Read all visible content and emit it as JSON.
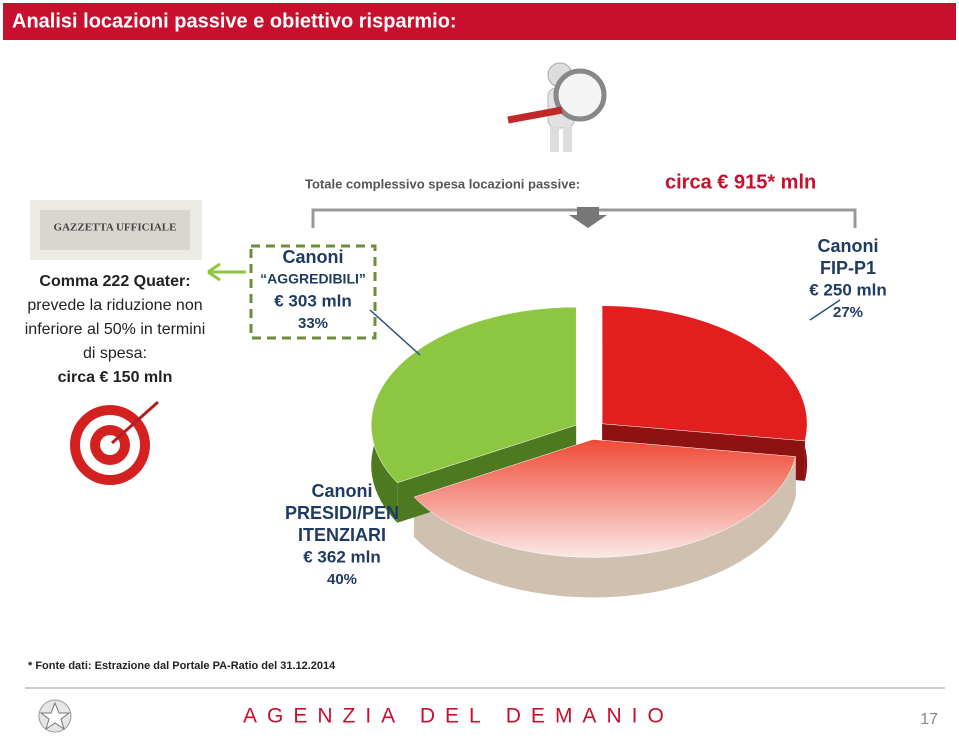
{
  "title": "Analisi locazioni passive e obiettivo risparmio:",
  "total": {
    "label": "Totale complessivo spesa locazioni passive:",
    "value": "circa € 915* mln"
  },
  "note": [
    "Comma 222 Quater:",
    "prevede la riduzione non",
    "inferiore al 50% in termini",
    "di spesa:",
    "circa € 150 mln"
  ],
  "chart_data": {
    "type": "pie",
    "categories": [
      [
        "Canoni",
        "FIP-P1"
      ],
      [
        "Canoni",
        "PRESIDI/PEN",
        "ITENZIARI"
      ],
      [
        "Canoni",
        "“AGGREDIBILI”"
      ]
    ],
    "values": [
      250,
      362,
      303
    ],
    "value_labels": [
      "€ 250 mln",
      "€ 362 mln",
      "€ 303 mln"
    ],
    "shares": [
      27,
      40,
      33
    ],
    "share_labels": [
      "27%",
      "40%",
      "33%"
    ],
    "colors": [
      "#e21f1f",
      "#f04a36",
      "#8dc640"
    ]
  },
  "footnote": "* Fonte dati: Estrazione dal Portale PA-Ratio del 31.12.2014",
  "footer": "AGENZIA DEL DEMANIO",
  "page": 17
}
